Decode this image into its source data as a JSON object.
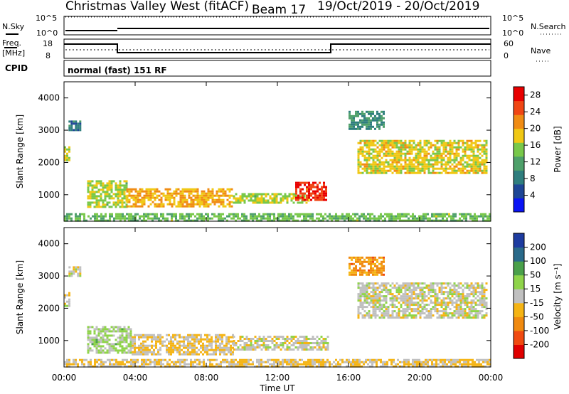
{
  "header": {
    "station": "Christmas Valley West (fitACF)",
    "beam": "Beam 17",
    "dates": "19/Oct/2019 - 20/Oct/2019"
  },
  "panel_labels": {
    "nsky": "N.Sky",
    "nsearch": "N.Search",
    "freq": "Freq.",
    "freq_unit": "[MHz]",
    "nave": "Nave",
    "cpid": "CPID",
    "mode": "normal (fast) 151 RF"
  },
  "noise_ticks_left": [
    "10^5",
    "10^0"
  ],
  "noise_ticks_right": [
    "10^5",
    "10^0"
  ],
  "freq_ticks_left": [
    "18",
    "8"
  ],
  "nave_ticks_right": [
    "60",
    "0"
  ],
  "axes": {
    "ylabel": "Slant Range [km]",
    "xlabel": "Time UT",
    "x_ticks": [
      "00:00",
      "04:00",
      "08:00",
      "12:00",
      "16:00",
      "20:00",
      "00:00"
    ],
    "y_ticks": [
      "1000",
      "2000",
      "3000",
      "4000"
    ]
  },
  "colors": {
    "power": [
      "#0a14f5",
      "#1e4696",
      "#2f7e7e",
      "#4ea06a",
      "#78c84a",
      "#f0c814",
      "#f08c14",
      "#f04614",
      "#e80000"
    ],
    "velocity": [
      "#e00000",
      "#f04a10",
      "#f08a10",
      "#f5b414",
      "#c0c0c0",
      "#8fd44a",
      "#4aa04a",
      "#2a6a8a",
      "#1e3ca0"
    ],
    "gray": "#c0c0c0"
  },
  "chart_data": [
    {
      "type": "heatmap",
      "title": "Power [dB]",
      "xlabel": "Time UT",
      "ylabel": "Slant Range [km]",
      "xlim": [
        0,
        24
      ],
      "ylim": [
        180,
        4500
      ],
      "colorbar_label": "Power [dB]",
      "colorbar_ticks": [
        "4",
        "8",
        "12",
        "16",
        "20",
        "24",
        "28"
      ],
      "colorbar_range": [
        0,
        30
      ],
      "regions": [
        {
          "t0": 0.0,
          "t1": 0.35,
          "r0": 2050,
          "r1": 2500,
          "value": 16
        },
        {
          "t0": 0.25,
          "t1": 0.9,
          "r0": 3000,
          "r1": 3300,
          "value": 8
        },
        {
          "t0": 1.3,
          "t1": 3.5,
          "r0": 600,
          "r1": 1450,
          "value": 16
        },
        {
          "t0": 3.5,
          "t1": 9.5,
          "r0": 650,
          "r1": 1200,
          "value": 20
        },
        {
          "t0": 9.5,
          "t1": 13.8,
          "r0": 750,
          "r1": 1050,
          "value": 16
        },
        {
          "t0": 13.0,
          "t1": 14.8,
          "r0": 850,
          "r1": 1400,
          "value": 26
        },
        {
          "t0": 16.0,
          "t1": 18.0,
          "r0": 3050,
          "r1": 3600,
          "value": 10
        },
        {
          "t0": 16.5,
          "t1": 23.8,
          "r0": 1700,
          "r1": 2700,
          "value": 18
        },
        {
          "t0": 0.0,
          "t1": 24.0,
          "r0": 180,
          "r1": 430,
          "value": 14
        }
      ]
    },
    {
      "type": "heatmap",
      "title": "Velocity [m s-1]",
      "xlabel": "Time UT",
      "ylabel": "Slant Range [km]",
      "xlim": [
        0,
        24
      ],
      "ylim": [
        180,
        4500
      ],
      "colorbar_label": "Velocity [m s⁻¹]",
      "colorbar_ticks": [
        "200",
        "100",
        "50",
        "15",
        "-15",
        "-50",
        "-100",
        "-200"
      ],
      "colorbar_range": [
        -250,
        250
      ],
      "regions": [
        {
          "t0": 0.0,
          "t1": 0.35,
          "r0": 2050,
          "r1": 2500,
          "value": 0
        },
        {
          "t0": 0.25,
          "t1": 0.9,
          "r0": 3000,
          "r1": 3300,
          "value": 0
        },
        {
          "t0": 1.3,
          "t1": 3.8,
          "r0": 600,
          "r1": 1450,
          "value": 40
        },
        {
          "t0": 3.8,
          "t1": 9.5,
          "r0": 600,
          "r1": 1200,
          "value": -30
        },
        {
          "t0": 9.5,
          "t1": 14.8,
          "r0": 750,
          "r1": 1150,
          "value": 0
        },
        {
          "t0": 16.0,
          "t1": 18.0,
          "r0": 3050,
          "r1": 3600,
          "value": -100
        },
        {
          "t0": 16.5,
          "t1": 23.8,
          "r0": 1700,
          "r1": 2800,
          "value": 0
        },
        {
          "t0": 0.0,
          "t1": 24.0,
          "r0": 180,
          "r1": 430,
          "value": -30
        }
      ]
    }
  ]
}
